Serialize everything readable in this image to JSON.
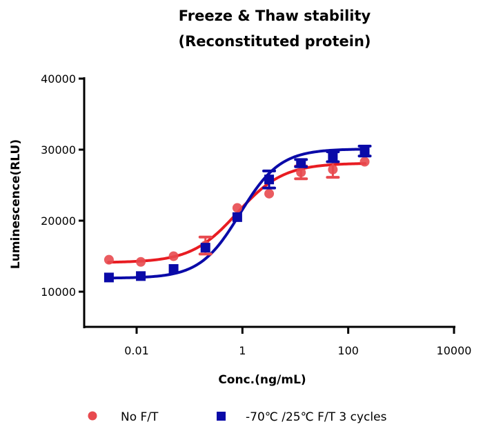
{
  "chart_data": {
    "type": "scatter",
    "title": "Freeze & Thaw stability",
    "subtitle": "(Reconstituted protein)",
    "xlabel": "Conc.(ng/mL)",
    "ylabel": "Luminescence(RLU)",
    "xscale": "log",
    "xlim": [
      0.002,
      10000
    ],
    "ylim": [
      5000,
      40000
    ],
    "x_ticks": [
      0.01,
      1,
      100,
      10000
    ],
    "x_tick_labels": [
      "0.01",
      "1",
      "100",
      "10000"
    ],
    "y_ticks": [
      10000,
      20000,
      30000,
      40000
    ],
    "y_tick_labels": [
      "10000",
      "20000",
      "30000",
      "40000"
    ],
    "grid": false,
    "legend_position": "bottom",
    "x": [
      0.003,
      0.012,
      0.05,
      0.2,
      0.8,
      3.2,
      12.8,
      51.2,
      204.8
    ],
    "series": [
      {
        "name": "No F/T",
        "marker": "circle",
        "color": "#e8353a",
        "values": [
          14500,
          14200,
          15000,
          16500,
          21800,
          23800,
          26800,
          27200,
          28300
        ],
        "errors": [
          0,
          0,
          0,
          1200,
          0,
          0,
          900,
          1100,
          0
        ],
        "fit": {
          "bottom": 14100,
          "top": 28100,
          "ec50": 0.8,
          "hill": 1.0
        }
      },
      {
        "name": "-70℃/25℃ F/T 3 cycles",
        "marker": "square",
        "color": "#0a0aa8",
        "values": [
          12000,
          12200,
          13200,
          16200,
          20500,
          25800,
          28100,
          29000,
          29800
        ],
        "errors": [
          0,
          0,
          0,
          0,
          0,
          1200,
          500,
          700,
          700
        ],
        "fit": {
          "bottom": 11900,
          "top": 30100,
          "ec50": 0.9,
          "hill": 1.15
        }
      }
    ],
    "legend": [
      {
        "label": "No F/T"
      },
      {
        "label": "-70℃ /25℃  F/T 3 cycles"
      }
    ]
  }
}
